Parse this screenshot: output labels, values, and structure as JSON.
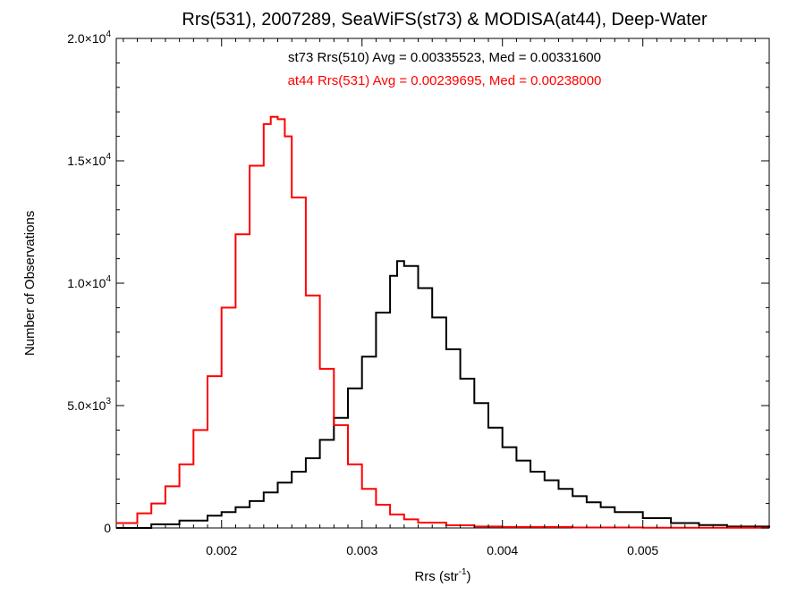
{
  "chart_data": {
    "type": "line",
    "title": "Rrs(531), 2007289, SeaWiFS(st73) & MODISA(at44), Deep-Water",
    "xlabel": "Rrs (str",
    "xlabel_sup": "-1",
    "xlabel_close": ")",
    "ylabel": "Number of Observations",
    "xlim": [
      0.00125,
      0.0059
    ],
    "ylim": [
      0,
      20000
    ],
    "grid": false,
    "x_ticks": [
      0.002,
      0.003,
      0.004,
      0.005
    ],
    "x_tick_labels": [
      "0.002",
      "0.003",
      "0.004",
      "0.005"
    ],
    "y_ticks": [
      {
        "value": 0,
        "mantissa": "0",
        "exp": ""
      },
      {
        "value": 5000,
        "mantissa": "5.0×10",
        "exp": "3"
      },
      {
        "value": 10000,
        "mantissa": "1.0×10",
        "exp": "4"
      },
      {
        "value": 15000,
        "mantissa": "1.5×10",
        "exp": "4"
      },
      {
        "value": 20000,
        "mantissa": "2.0×10",
        "exp": "4"
      }
    ],
    "series": [
      {
        "name": "st73 Rrs(510) Avg = 0.00335523, Med = 0.00331600",
        "color": "#000000",
        "x": [
          0.00125,
          0.0015,
          0.0017,
          0.0019,
          0.002,
          0.0021,
          0.0022,
          0.0023,
          0.0024,
          0.0025,
          0.0026,
          0.0027,
          0.0028,
          0.0029,
          0.003,
          0.0031,
          0.0032,
          0.00325,
          0.0033,
          0.0034,
          0.0035,
          0.0036,
          0.0037,
          0.0038,
          0.0039,
          0.004,
          0.0041,
          0.0042,
          0.0043,
          0.0044,
          0.0045,
          0.0046,
          0.0047,
          0.0048,
          0.005,
          0.0052,
          0.0054,
          0.0056,
          0.0059
        ],
        "values": [
          0,
          150,
          300,
          500,
          650,
          850,
          1100,
          1450,
          1850,
          2300,
          2850,
          3600,
          4500,
          5700,
          7000,
          8800,
          10300,
          10900,
          10700,
          9800,
          8600,
          7300,
          6100,
          5100,
          4100,
          3300,
          2750,
          2300,
          1950,
          1600,
          1300,
          1050,
          850,
          650,
          400,
          200,
          120,
          60,
          30
        ]
      },
      {
        "name": "at44 Rrs(531) Avg = 0.00239695, Med = 0.00238000",
        "color": "#ff0000",
        "x": [
          0.00125,
          0.0014,
          0.0015,
          0.0016,
          0.0017,
          0.0018,
          0.0019,
          0.002,
          0.0021,
          0.0022,
          0.0023,
          0.00235,
          0.0024,
          0.00245,
          0.0025,
          0.0026,
          0.0027,
          0.0028,
          0.0029,
          0.003,
          0.0031,
          0.0032,
          0.0033,
          0.0034,
          0.0036,
          0.0038,
          0.004,
          0.0045,
          0.005,
          0.0059
        ],
        "values": [
          200,
          600,
          1000,
          1700,
          2600,
          4000,
          6200,
          9000,
          12000,
          14800,
          16500,
          16800,
          16700,
          16000,
          13500,
          9500,
          6500,
          4200,
          2600,
          1600,
          950,
          550,
          350,
          220,
          110,
          60,
          40,
          20,
          10,
          0
        ]
      }
    ]
  }
}
